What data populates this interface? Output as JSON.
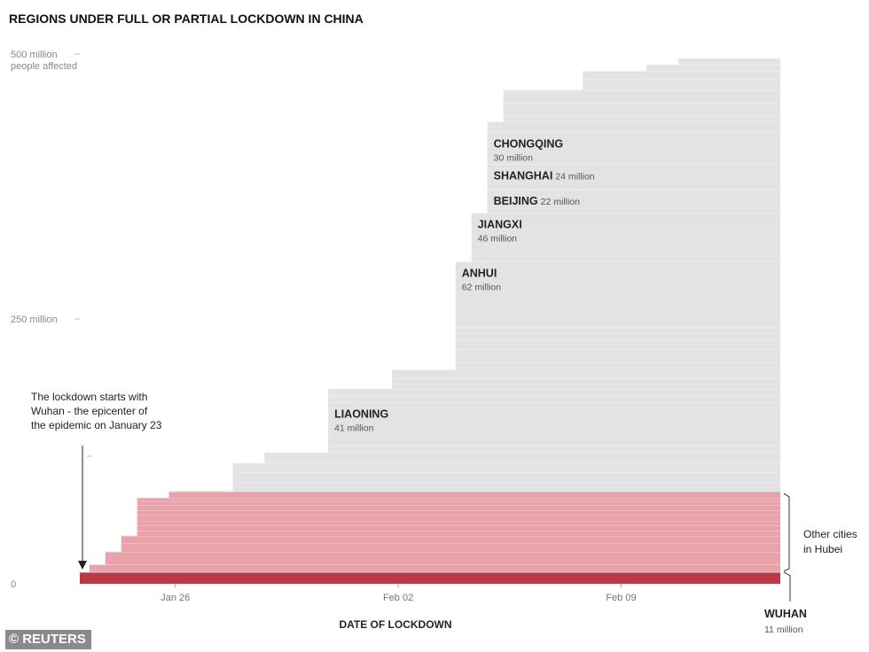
{
  "chart_data": {
    "type": "area",
    "title": "REGIONS UNDER FULL OR PARTIAL LOCKDOWN IN CHINA",
    "xlabel": "DATE OF LOCKDOWN",
    "ylabel": "people affected",
    "x_ticks": [
      {
        "label": "Jan 26",
        "day": 3
      },
      {
        "label": "Feb 02",
        "day": 10
      },
      {
        "label": "Feb 09",
        "day": 17
      }
    ],
    "x_range_days": [
      0,
      22
    ],
    "y_ticks": [
      {
        "value": 0,
        "label": "0"
      },
      {
        "value": 250,
        "label": "250 million"
      },
      {
        "value": 500,
        "label": "500 million",
        "label2": "people affected"
      }
    ],
    "y_unit": "million",
    "ylim": [
      0,
      500
    ],
    "colors": {
      "wuhan": "#b93a45",
      "hubei": "#e9a2aa",
      "hubei_line": "#f5d3d7",
      "other": "#e3e3e3",
      "other_line": "#f7f7f7"
    },
    "series": [
      {
        "name": "Wuhan",
        "group": "wuhan",
        "start_day": 0.0,
        "million": 11
      },
      {
        "name": "",
        "group": "hubei",
        "start_day": 0.3,
        "million": 7
      },
      {
        "name": "",
        "group": "hubei",
        "start_day": 0.8,
        "million": 12
      },
      {
        "name": "",
        "group": "hubei",
        "start_day": 1.3,
        "million": 8
      },
      {
        "name": "",
        "group": "hubei",
        "start_day": 1.3,
        "million": 7
      },
      {
        "name": "",
        "group": "hubei",
        "start_day": 1.8,
        "million": 5
      },
      {
        "name": "",
        "group": "hubei",
        "start_day": 1.8,
        "million": 5
      },
      {
        "name": "",
        "group": "hubei",
        "start_day": 1.8,
        "million": 4
      },
      {
        "name": "",
        "group": "hubei",
        "start_day": 1.8,
        "million": 6
      },
      {
        "name": "",
        "group": "hubei",
        "start_day": 1.8,
        "million": 4
      },
      {
        "name": "",
        "group": "hubei",
        "start_day": 1.8,
        "million": 5
      },
      {
        "name": "",
        "group": "hubei",
        "start_day": 1.8,
        "million": 4
      },
      {
        "name": "",
        "group": "hubei",
        "start_day": 1.8,
        "million": 3
      },
      {
        "name": "",
        "group": "hubei",
        "start_day": 2.8,
        "million": 6
      },
      {
        "name": "",
        "group": "other",
        "start_day": 4.8,
        "million": 8
      },
      {
        "name": "",
        "group": "other",
        "start_day": 4.8,
        "million": 10
      },
      {
        "name": "",
        "group": "other",
        "start_day": 4.8,
        "million": 9
      },
      {
        "name": "",
        "group": "other",
        "start_day": 5.8,
        "million": 10
      },
      {
        "name": "",
        "group": "other",
        "start_day": 7.8,
        "million": 6
      },
      {
        "name": "LIAONING",
        "group": "other",
        "start_day": 7.8,
        "million": 41,
        "pop_label": "41 million",
        "label_layout": "stacked"
      },
      {
        "name": "",
        "group": "other",
        "start_day": 7.8,
        "million": 7
      },
      {
        "name": "",
        "group": "other",
        "start_day": 7.8,
        "million": 6
      },
      {
        "name": "",
        "group": "other",
        "start_day": 9.8,
        "million": 10
      },
      {
        "name": "",
        "group": "other",
        "start_day": 9.8,
        "million": 8
      },
      {
        "name": "",
        "group": "other",
        "start_day": 11.8,
        "million": 7
      },
      {
        "name": "",
        "group": "other",
        "start_day": 11.8,
        "million": 12
      },
      {
        "name": "",
        "group": "other",
        "start_day": 11.8,
        "million": 10
      },
      {
        "name": "",
        "group": "other",
        "start_day": 11.8,
        "million": 6
      },
      {
        "name": "",
        "group": "other",
        "start_day": 11.8,
        "million": 5
      },
      {
        "name": "ANHUI",
        "group": "other",
        "start_day": 11.8,
        "million": 62,
        "pop_label": "62 million",
        "label_layout": "stacked"
      },
      {
        "name": "JIANGXI",
        "group": "other",
        "start_day": 12.3,
        "million": 46,
        "pop_label": "46 million",
        "label_layout": "stacked"
      },
      {
        "name": "BEIJING",
        "group": "other",
        "start_day": 12.8,
        "million": 22,
        "pop_label": "22 million",
        "label_layout": "inline"
      },
      {
        "name": "SHANGHAI",
        "group": "other",
        "start_day": 12.8,
        "million": 24,
        "pop_label": "24 million",
        "label_layout": "inline"
      },
      {
        "name": "CHONGQING",
        "group": "other",
        "start_day": 12.8,
        "million": 30,
        "pop_label": "30 million",
        "label_layout": "stacked"
      },
      {
        "name": "",
        "group": "other",
        "start_day": 12.8,
        "million": 10
      },
      {
        "name": "",
        "group": "other",
        "start_day": 13.3,
        "million": 6
      },
      {
        "name": "",
        "group": "other",
        "start_day": 13.3,
        "million": 12
      },
      {
        "name": "",
        "group": "other",
        "start_day": 13.3,
        "million": 12
      },
      {
        "name": "",
        "group": "other",
        "start_day": 15.8,
        "million": 10
      },
      {
        "name": "",
        "group": "other",
        "start_day": 15.8,
        "million": 8
      },
      {
        "name": "",
        "group": "other",
        "start_day": 17.8,
        "million": 6
      },
      {
        "name": "",
        "group": "other",
        "start_day": 18.8,
        "million": 6
      }
    ],
    "annotations": {
      "lockdown_start": [
        "The lockdown starts with",
        "Wuhan - the epicenter of",
        "the epidemic on January 23"
      ],
      "hubei_label": [
        "Other cities",
        "in Hubei"
      ],
      "wuhan_name": "WUHAN",
      "wuhan_pop": "11 million"
    }
  },
  "source": "© REUTERS"
}
